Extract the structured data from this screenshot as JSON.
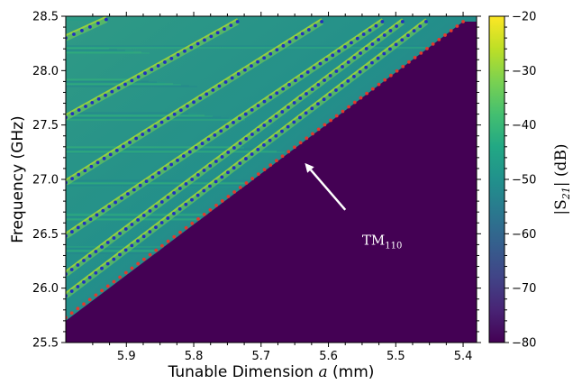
{
  "chart_data": {
    "type": "heatmap",
    "title": "",
    "xlabel": {
      "prefix": "Tunable Dimension ",
      "var": "a",
      "suffix": " (mm)"
    },
    "ylabel": "Frequency (GHz)",
    "xlim": [
      5.99,
      5.38
    ],
    "ylim": [
      25.5,
      28.5
    ],
    "x_reversed": true,
    "xticks": [
      5.9,
      5.8,
      5.7,
      5.6,
      5.5,
      5.4
    ],
    "xtick_labels": [
      "5.9",
      "5.8",
      "5.7",
      "5.6",
      "5.5",
      "5.4"
    ],
    "yticks": [
      25.5,
      26.0,
      26.5,
      27.0,
      27.5,
      28.0,
      28.5
    ],
    "ytick_labels": [
      "25.5",
      "26.0",
      "26.5",
      "27.0",
      "27.5",
      "28.0",
      "28.5"
    ],
    "colorbar": {
      "label_pre": "|S",
      "label_sub": "21",
      "label_post": "| (dB)",
      "range": [
        -80,
        -20
      ],
      "ticks": [
        -80,
        -70,
        -60,
        -50,
        -40,
        -30,
        -20
      ],
      "tick_labels": [
        "−80",
        "−70",
        "−60",
        "−50",
        "−40",
        "−30",
        "−20"
      ],
      "colormap": "viridis"
    },
    "cutoff_line": {
      "x": [
        5.99,
        5.4
      ],
      "y": [
        25.7,
        28.45
      ]
    },
    "series": [
      {
        "color": "#e03a2f",
        "x": [
          5.99,
          5.4
        ],
        "y": [
          25.73,
          28.45
        ]
      },
      {
        "color": "#1f2fbf",
        "x": [
          5.99,
          5.455
        ],
        "y": [
          25.93,
          28.45
        ]
      },
      {
        "color": "#1f2fbf",
        "x": [
          5.99,
          5.49
        ],
        "y": [
          26.13,
          28.45
        ]
      },
      {
        "color": "#1f2fbf",
        "x": [
          5.99,
          5.52
        ],
        "y": [
          26.48,
          28.45
        ]
      },
      {
        "color": "#1f2fbf",
        "x": [
          5.99,
          5.61
        ],
        "y": [
          26.97,
          28.45
        ]
      },
      {
        "color": "#1f2fbf",
        "x": [
          5.99,
          5.735
        ],
        "y": [
          27.57,
          28.45
        ]
      },
      {
        "color": "#1f2fbf",
        "x": [
          5.99,
          5.93
        ],
        "y": [
          28.3,
          28.47
        ]
      }
    ],
    "annotation": {
      "text_main": "TM",
      "text_sub": "110",
      "text_at": [
        5.55,
        26.4
      ],
      "arrow_from": [
        5.575,
        26.72
      ],
      "arrow_to": [
        5.635,
        27.15
      ],
      "color": "#ffffff"
    },
    "colors": {
      "background_mode": "#440154",
      "text": "#000000"
    }
  }
}
